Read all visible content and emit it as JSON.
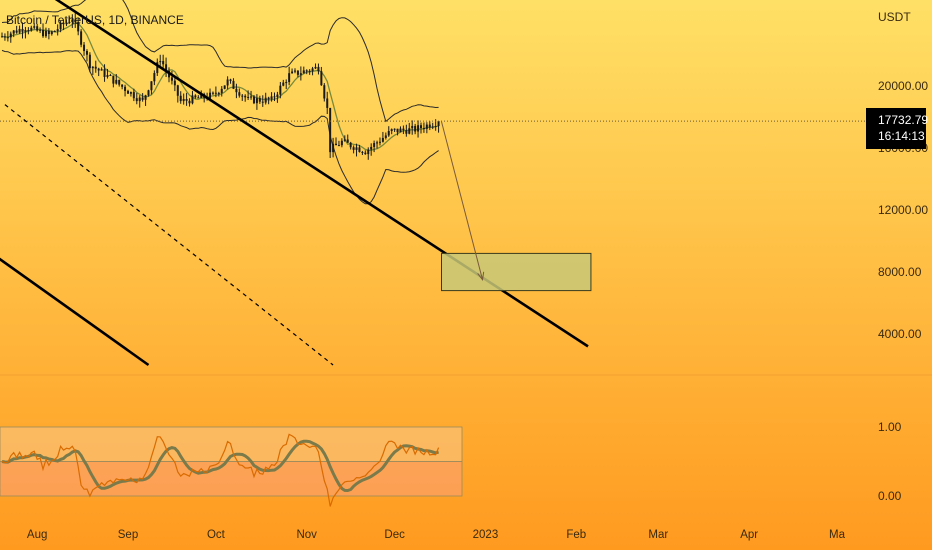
{
  "title": "Bitcoin / TetherUS, 1D, BINANCE",
  "currency_label": "USDT",
  "colors": {
    "bg_top": "#ffe066",
    "bg_bottom": "#ff9a1f",
    "candle": "#1a1a1a",
    "ma": "#7a8a3a",
    "band": "#2a2a2a",
    "trendline": "#000000",
    "target_fill": "#c8c878",
    "target_stroke": "#3a3a1a",
    "osc_fast": "#d96b00",
    "osc_slow": "#7a7a4a",
    "osc_band_upper": "#f7c68a",
    "osc_band_lower": "#f9a07a"
  },
  "chart_data": [
    {
      "type": "candlestick",
      "ylabel": "USDT",
      "y_ticks": [
        "20000.00",
        "16000.00",
        "12000.00",
        "8000.00",
        "4000.00"
      ],
      "x_ticks": [
        "Aug",
        "Sep",
        "Oct",
        "Nov",
        "Dec",
        "2023",
        "Feb",
        "Mar",
        "Apr",
        "Ma"
      ],
      "ylim": [
        2000,
        26000
      ],
      "last_price": {
        "price": "17732.79",
        "countdown": "16:14:13"
      },
      "series_summary": {
        "start": {
          "date": "2022-07-20",
          "close": 23200
        },
        "end": {
          "date": "2022-12-16",
          "close": 17732.79
        }
      },
      "target_zone": {
        "x_from": "2022-12-17",
        "x_to": "2023-02-06",
        "y_low": 6800,
        "y_high": 9200
      },
      "projection_arrow": {
        "from": {
          "date": "2022-12-17",
          "price": 17700
        },
        "to": {
          "date": "2022-12-31",
          "price": 7500
        }
      },
      "trendlines": [
        {
          "style": "solid",
          "from": {
            "date": "2022-08-05",
            "price": 25900
          },
          "to": {
            "date": "2023-02-05",
            "price": 3200
          }
        },
        {
          "style": "dashed",
          "from": {
            "date": "2022-07-21",
            "price": 18800
          },
          "to": {
            "date": "2022-11-10",
            "price": 2000
          }
        },
        {
          "style": "solid",
          "from": {
            "date": "2022-07-18",
            "price": 9000
          },
          "to": {
            "date": "2022-09-08",
            "price": 2000
          }
        }
      ]
    },
    {
      "type": "line",
      "y_ticks": [
        "1.00",
        "0.00"
      ],
      "ylim": [
        -0.2,
        1.4
      ],
      "bands": [
        {
          "from": 0.5,
          "to": 1.0
        },
        {
          "from": 0.0,
          "to": 0.5
        }
      ],
      "series": [
        {
          "values_summary": "fast oscillator ranging 0.0–0.9"
        },
        {
          "values_summary": "slow oscillator ranging 0.1–0.8"
        }
      ]
    }
  ]
}
